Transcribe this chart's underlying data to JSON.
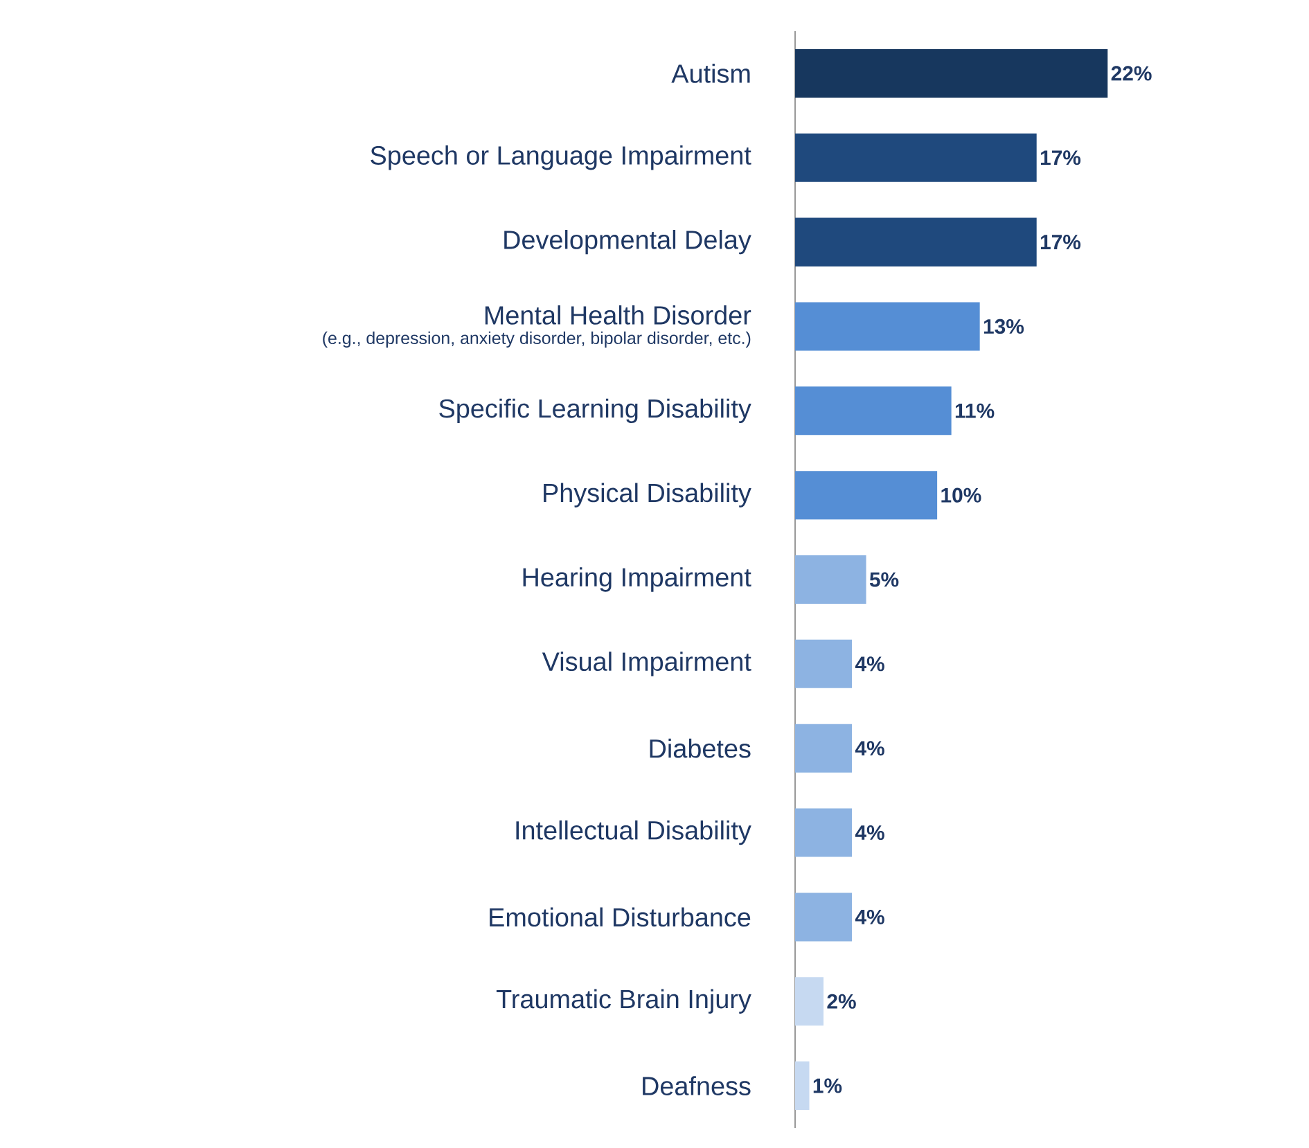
{
  "chart_data": {
    "type": "bar",
    "orientation": "horizontal",
    "categories": [
      "Autism",
      "Speech or Language Impairment",
      "Developmental Delay",
      "Mental Health Disorder",
      "Specific Learning Disability",
      "Physical Disability",
      "Hearing Impairment",
      "Visual Impairment",
      "Diabetes",
      "Intellectual Disability",
      "Emotional Disturbance",
      "Traumatic Brain Injury",
      "Deafness"
    ],
    "values": [
      22,
      17,
      17,
      13,
      11,
      10,
      5,
      4,
      4,
      4,
      4,
      2,
      1
    ],
    "value_labels": [
      "22%",
      "17%",
      "17%",
      "13%",
      "11%",
      "10%",
      "5%",
      "4%",
      "4%",
      "4%",
      "4%",
      "2%",
      "1%"
    ],
    "colors": [
      "#17375e",
      "#1f497d",
      "#1f497d",
      "#558ed5",
      "#558ed5",
      "#558ed5",
      "#8db3e2",
      "#8db3e2",
      "#8db3e2",
      "#8db3e2",
      "#8db3e2",
      "#c6d9f1",
      "#c6d9f1"
    ],
    "annotations": [
      "(e.g., depression, anxiety disorder, bipolar disorder, etc.)"
    ]
  }
}
